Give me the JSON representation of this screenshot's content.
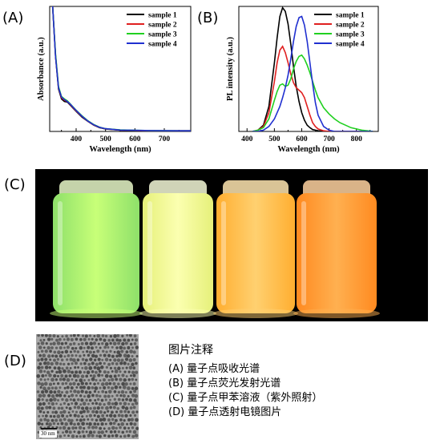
{
  "panels": {
    "a_label": "(A)",
    "b_label": "(B)",
    "c_label": "(C)",
    "d_label": "(D)"
  },
  "chart_data": [
    {
      "type": "line",
      "panel": "(A)",
      "xlabel": "Wavelength (nm)",
      "ylabel": "Absorbance (a.u.)",
      "xlim": [
        310,
        790
      ],
      "ylim": [
        0,
        1.0
      ],
      "xticks": [
        400,
        500,
        600,
        700
      ],
      "legend_position": "top-right",
      "x": [
        320,
        330,
        340,
        350,
        360,
        370,
        380,
        390,
        400,
        420,
        440,
        460,
        480,
        500,
        550,
        600,
        650,
        700,
        750,
        790
      ],
      "series": [
        {
          "name": "sample 1",
          "color": "#000000",
          "values": [
            1.0,
            0.6,
            0.34,
            0.26,
            0.24,
            0.235,
            0.21,
            0.185,
            0.16,
            0.115,
            0.08,
            0.05,
            0.03,
            0.02,
            0.01,
            0.008,
            0.006,
            0.005,
            0.005,
            0.005
          ]
        },
        {
          "name": "sample 2",
          "color": "#e02020",
          "values": [
            1.0,
            0.61,
            0.35,
            0.27,
            0.25,
            0.24,
            0.215,
            0.19,
            0.165,
            0.12,
            0.082,
            0.052,
            0.032,
            0.021,
            0.011,
            0.008,
            0.006,
            0.005,
            0.005,
            0.005
          ]
        },
        {
          "name": "sample 3",
          "color": "#20d020",
          "values": [
            1.0,
            0.62,
            0.36,
            0.28,
            0.26,
            0.245,
            0.22,
            0.195,
            0.17,
            0.125,
            0.085,
            0.055,
            0.034,
            0.022,
            0.012,
            0.009,
            0.007,
            0.006,
            0.005,
            0.005
          ]
        },
        {
          "name": "sample 4",
          "color": "#2030d0",
          "values": [
            1.0,
            0.6,
            0.35,
            0.275,
            0.255,
            0.24,
            0.218,
            0.193,
            0.168,
            0.122,
            0.083,
            0.053,
            0.033,
            0.022,
            0.011,
            0.009,
            0.007,
            0.006,
            0.005,
            0.005
          ]
        }
      ]
    },
    {
      "type": "line",
      "panel": "(B)",
      "xlabel": "Wavelength (nm)",
      "ylabel": "PL intensity (a.u.)",
      "xlim": [
        370,
        880
      ],
      "ylim": [
        0,
        1.0
      ],
      "xticks": [
        400,
        500,
        600,
        700,
        800
      ],
      "legend_position": "top-right",
      "x": [
        420,
        440,
        460,
        480,
        500,
        510,
        520,
        530,
        540,
        550,
        560,
        570,
        580,
        590,
        600,
        610,
        620,
        630,
        640,
        650,
        660,
        680,
        700,
        720,
        740,
        760,
        780,
        800,
        820,
        840,
        860
      ],
      "series": [
        {
          "name": "sample 1",
          "color": "#000000",
          "values": [
            0.0,
            0.01,
            0.05,
            0.2,
            0.55,
            0.75,
            0.92,
            0.99,
            0.96,
            0.86,
            0.7,
            0.52,
            0.36,
            0.24,
            0.15,
            0.09,
            0.05,
            0.03,
            0.015,
            0.01,
            0.005,
            0.0,
            0.0,
            0.0,
            0.0,
            0.0,
            0.0,
            0.0,
            0.0,
            0.0,
            0.0
          ]
        },
        {
          "name": "sample 2",
          "color": "#e02020",
          "values": [
            0.0,
            0.01,
            0.04,
            0.15,
            0.4,
            0.55,
            0.65,
            0.68,
            0.63,
            0.55,
            0.46,
            0.39,
            0.35,
            0.33,
            0.31,
            0.27,
            0.2,
            0.13,
            0.07,
            0.04,
            0.02,
            0.005,
            0.0,
            0.0,
            0.0,
            0.0,
            0.0,
            0.0,
            0.0,
            0.0,
            0.0
          ]
        },
        {
          "name": "sample 3",
          "color": "#20d020",
          "values": [
            0.0,
            0.01,
            0.03,
            0.1,
            0.25,
            0.32,
            0.37,
            0.38,
            0.36,
            0.37,
            0.42,
            0.5,
            0.56,
            0.6,
            0.61,
            0.58,
            0.53,
            0.47,
            0.4,
            0.33,
            0.27,
            0.19,
            0.14,
            0.1,
            0.07,
            0.05,
            0.03,
            0.02,
            0.01,
            0.005,
            0.0
          ]
        },
        {
          "name": "sample 4",
          "color": "#2030d0",
          "values": [
            0.0,
            0.0,
            0.01,
            0.04,
            0.1,
            0.15,
            0.2,
            0.27,
            0.35,
            0.45,
            0.58,
            0.72,
            0.84,
            0.91,
            0.92,
            0.85,
            0.72,
            0.55,
            0.38,
            0.23,
            0.13,
            0.04,
            0.01,
            0.0,
            0.0,
            0.0,
            0.0,
            0.0,
            0.0,
            0.0,
            0.0
          ]
        }
      ]
    }
  ],
  "photo": {
    "vials": [
      {
        "liquid": "#8ee06a",
        "glow": "#c8ff78",
        "cap": "#e8f8c8"
      },
      {
        "liquid": "#e6f07a",
        "glow": "#fbffb0",
        "cap": "#f5f9d8"
      },
      {
        "liquid": "#ffae30",
        "glow": "#ffd070",
        "cap": "#ffe6b0"
      },
      {
        "liquid": "#ff8a20",
        "glow": "#ffb050",
        "cap": "#ffd2a0"
      }
    ]
  },
  "tem": {
    "scale_label": "30 nm"
  },
  "notes": {
    "title": "图片注释",
    "items": [
      "(A) 量子点吸收光谱",
      "(B) 量子点荧光发射光谱",
      "(C) 量子点甲苯溶液（紫外照射）",
      "(D) 量子点透射电镜图片"
    ]
  }
}
